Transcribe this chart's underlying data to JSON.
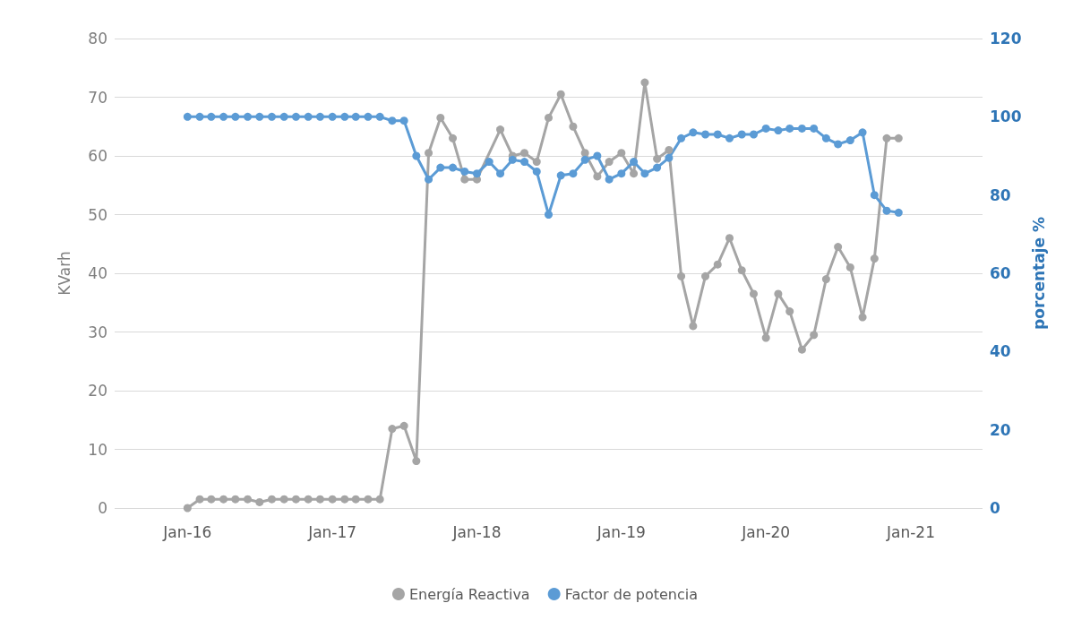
{
  "chart_data": {
    "type": "line",
    "ylabel": "KVarh",
    "y2label": "porcentaje %",
    "x": [
      "2016-01",
      "2016-02",
      "2016-03",
      "2016-04",
      "2016-05",
      "2016-06",
      "2016-07",
      "2016-08",
      "2016-09",
      "2016-10",
      "2016-11",
      "2016-12",
      "2017-01",
      "2017-02",
      "2017-03",
      "2017-04",
      "2017-05",
      "2017-06",
      "2017-07",
      "2017-08",
      "2017-09",
      "2017-10",
      "2017-11",
      "2017-12",
      "2018-01",
      "2018-02",
      "2018-03",
      "2018-04",
      "2018-05",
      "2018-06",
      "2018-07",
      "2018-08",
      "2018-09",
      "2018-10",
      "2018-11",
      "2018-12",
      "2019-01",
      "2019-02",
      "2019-03",
      "2019-04",
      "2019-05",
      "2019-06",
      "2019-07",
      "2019-08",
      "2019-09",
      "2019-10",
      "2019-11",
      "2019-12",
      "2020-01",
      "2020-02",
      "2020-03",
      "2020-04",
      "2020-05",
      "2020-06",
      "2020-07",
      "2020-08",
      "2020-09",
      "2020-10",
      "2020-11",
      "2020-12"
    ],
    "series": [
      {
        "name": "Energía Reactiva",
        "color": "#a5a5a5",
        "values": [
          0,
          1.5,
          1.5,
          1.5,
          1.5,
          1.5,
          1,
          1.5,
          1.5,
          1.5,
          1.5,
          1.5,
          1.5,
          1.5,
          1.5,
          1.5,
          1.5,
          13.5,
          14,
          8,
          60.5,
          66.5,
          63,
          56,
          56,
          null,
          64.5,
          60,
          60.5,
          59,
          66.5,
          70.5,
          65,
          60.5,
          56.5,
          59,
          60.5,
          57,
          72.5,
          59.5,
          61,
          39.5,
          31,
          39.5,
          41.5,
          46,
          40.5,
          36.5,
          29,
          36.5,
          33.5,
          27,
          29.5,
          39,
          44.5,
          41,
          32.5,
          42.5,
          63,
          63
        ]
      },
      {
        "name": "Factor de potencia",
        "color": "#5b9bd5",
        "axis": "y2",
        "values": [
          100,
          100,
          100,
          100,
          100,
          100,
          100,
          100,
          100,
          100,
          100,
          100,
          100,
          100,
          100,
          100,
          100,
          99,
          99,
          90,
          84,
          87,
          87,
          86,
          85.5,
          88.5,
          85.5,
          89,
          88.5,
          86,
          75,
          85,
          85.5,
          89,
          90,
          84,
          85.5,
          88.5,
          85.5,
          87,
          89.5,
          94.5,
          96,
          95.5,
          95.5,
          94.5,
          95.5,
          95.5,
          97,
          96.5,
          97,
          97,
          97,
          94.5,
          93,
          94,
          96,
          80,
          76,
          75.5
        ]
      }
    ],
    "xlim": [
      "2015-07",
      "2021-07"
    ],
    "xticks": [
      {
        "value": "2016-01",
        "label": "Jan-16"
      },
      {
        "value": "2017-01",
        "label": "Jan-17"
      },
      {
        "value": "2018-01",
        "label": "Jan-18"
      },
      {
        "value": "2019-01",
        "label": "Jan-19"
      },
      {
        "value": "2020-01",
        "label": "Jan-20"
      },
      {
        "value": "2021-01",
        "label": "Jan-21"
      }
    ],
    "ylim": [
      0,
      80
    ],
    "yticks": [
      0,
      10,
      20,
      30,
      40,
      50,
      60,
      70,
      80
    ],
    "y2lim": [
      0,
      120
    ],
    "y2ticks": [
      0,
      20,
      40,
      60,
      80,
      100,
      120
    ],
    "grid": "y",
    "legend": "bottom",
    "marker": "circle",
    "line_style": "solid"
  }
}
